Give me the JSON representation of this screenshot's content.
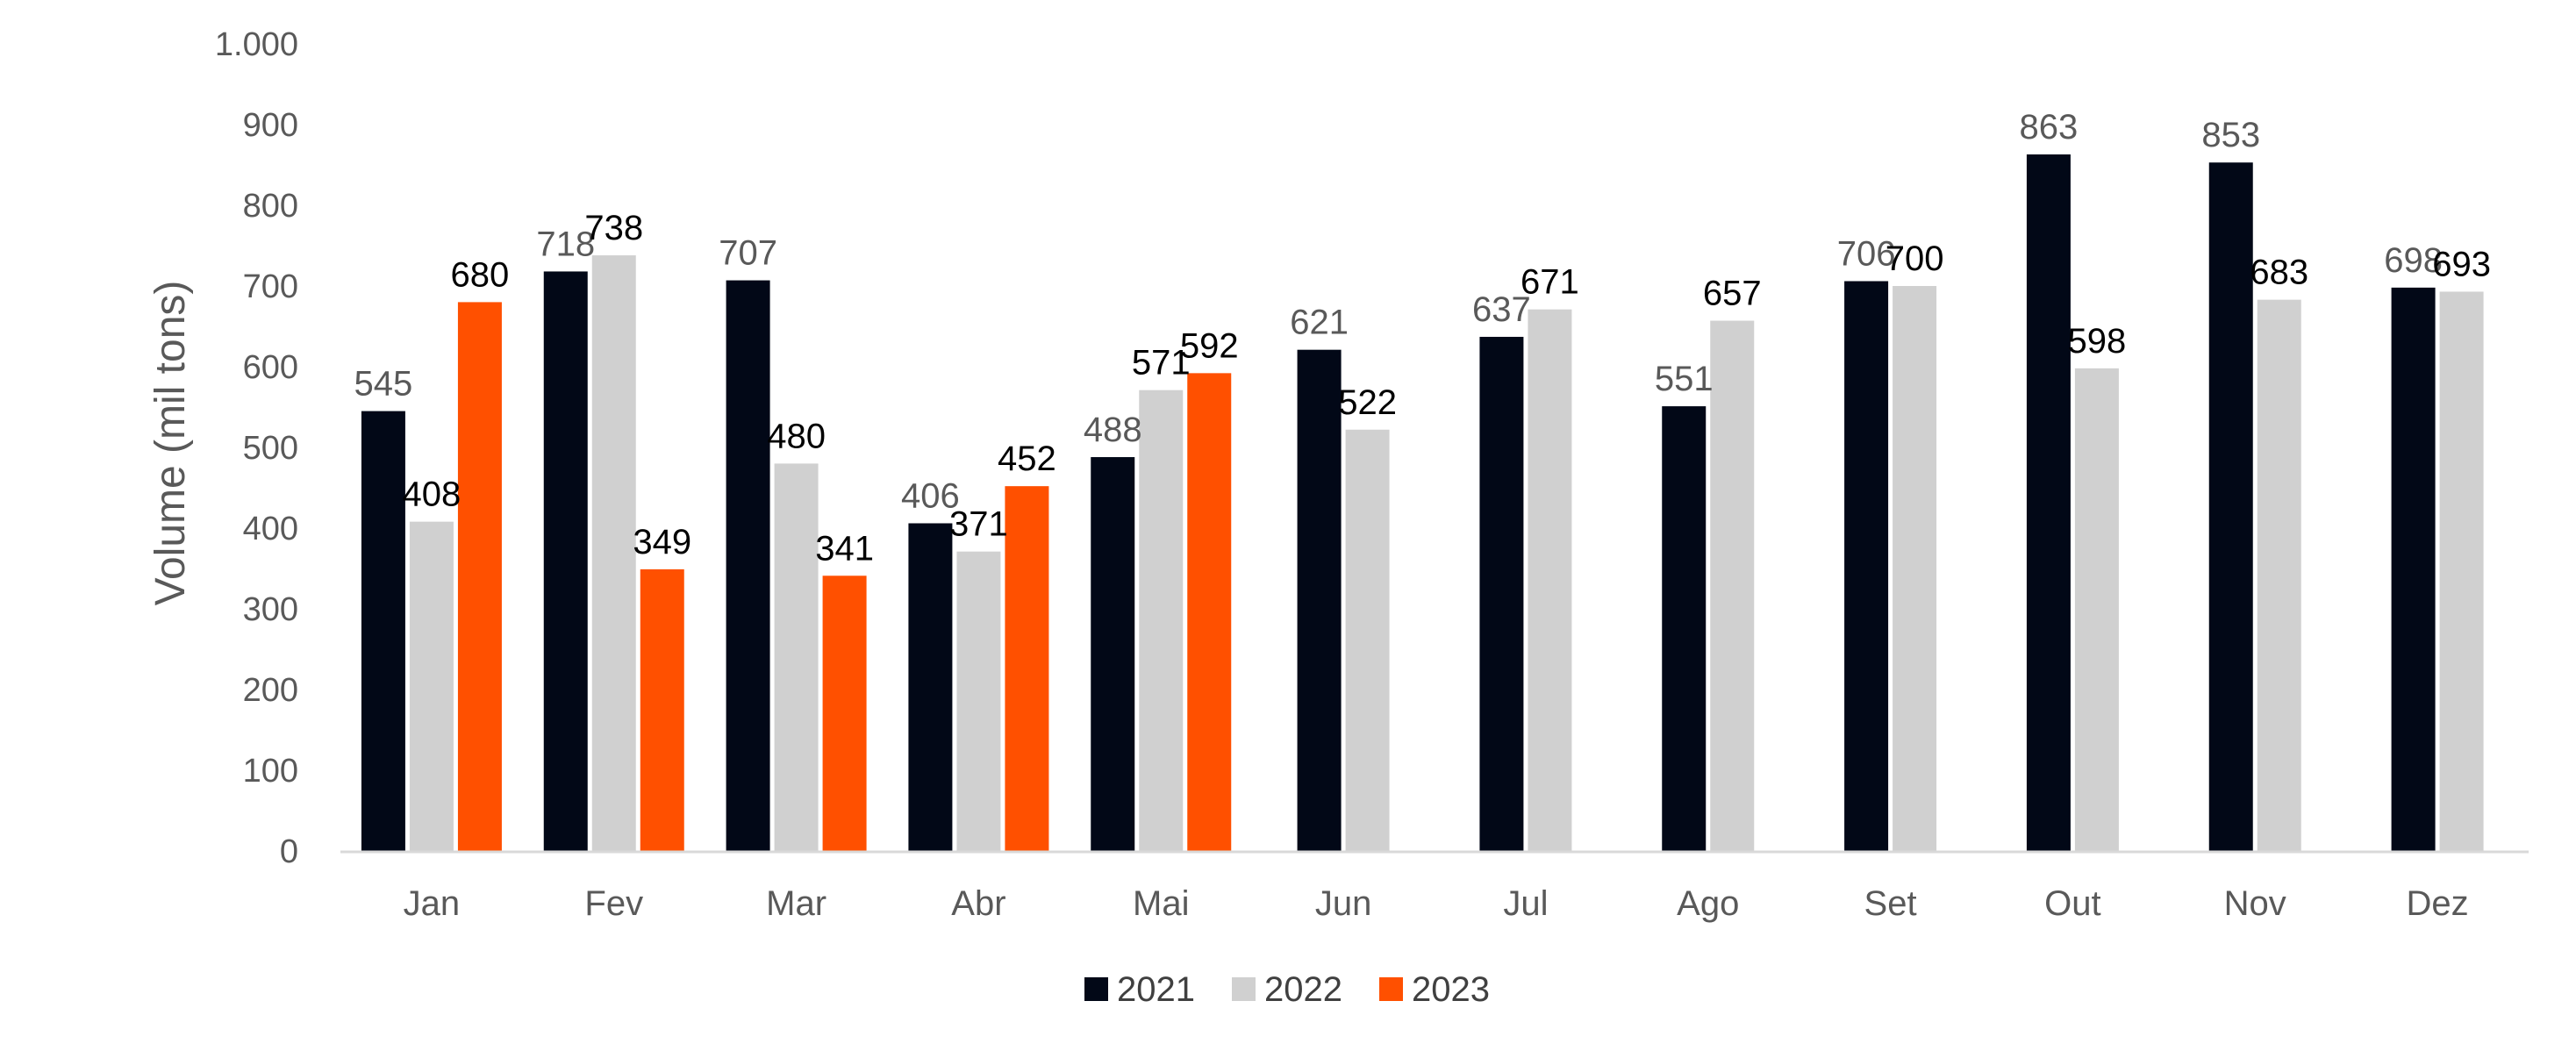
{
  "chart_data": {
    "type": "bar",
    "title": "",
    "xlabel": "",
    "ylabel": "Volume (mil tons)",
    "ylim": [
      0,
      1000
    ],
    "yticks": [
      0,
      100,
      200,
      300,
      400,
      500,
      600,
      700,
      800,
      900,
      1000
    ],
    "ytick_labels": [
      "0",
      "100",
      "200",
      "300",
      "400",
      "500",
      "600",
      "700",
      "800",
      "900",
      "1.000"
    ],
    "categories": [
      "Jan",
      "Fev",
      "Mar",
      "Abr",
      "Mai",
      "Jun",
      "Jul",
      "Ago",
      "Set",
      "Out",
      "Nov",
      "Dez"
    ],
    "series": [
      {
        "name": "2021",
        "color": "#020817",
        "label_color": "#595959",
        "values": [
          545,
          718,
          707,
          406,
          488,
          621,
          637,
          551,
          706,
          863,
          853,
          698
        ]
      },
      {
        "name": "2022",
        "color": "#d0d0d0",
        "label_color": "#000000",
        "values": [
          408,
          738,
          480,
          371,
          571,
          522,
          671,
          657,
          700,
          598,
          683,
          693
        ]
      },
      {
        "name": "2023",
        "color": "#ff5000",
        "label_color": "#000000",
        "values": [
          680,
          349,
          341,
          452,
          592,
          null,
          null,
          null,
          null,
          null,
          null,
          null
        ]
      }
    ],
    "legend_position": "bottom-center",
    "grid": false
  }
}
